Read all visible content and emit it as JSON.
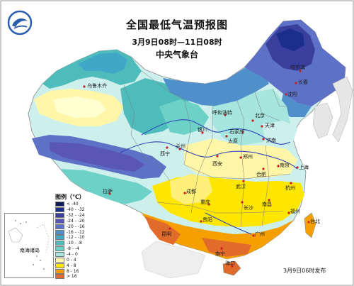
{
  "title": "全国最低气温预报图",
  "period": "3月9日08时—11日08时",
  "agency": "中央气象台",
  "issue_time": "3月9日06时发布",
  "inset_label": "南海诸岛",
  "legend": {
    "title": "图例（℃）",
    "items": [
      {
        "label": "< -40",
        "color": "#0c1a58"
      },
      {
        "label": "-40 - -32",
        "color": "#1b2f8a"
      },
      {
        "label": "-32 - -24",
        "color": "#3a3f9e"
      },
      {
        "label": "-24 - -20",
        "color": "#5a56b6"
      },
      {
        "label": "-20 - -16",
        "color": "#5d72c6"
      },
      {
        "label": "-16 - -12",
        "color": "#4f8fcb"
      },
      {
        "label": "-12 - -10",
        "color": "#3fa8c7"
      },
      {
        "label": "-10 - -8",
        "color": "#4fbcbc"
      },
      {
        "label": "-8 - -4",
        "color": "#6dd1c8"
      },
      {
        "label": "-4 - 0",
        "color": "#a6e6de"
      },
      {
        "label": "0 - 4",
        "color": "#fff6a8"
      },
      {
        "label": "4 - 8",
        "color": "#ffe600"
      },
      {
        "label": "8 - 16",
        "color": "#f5a000"
      },
      {
        "label": "> 16",
        "color": "#e06b2a"
      }
    ]
  },
  "cities": [
    {
      "name": "哈尔滨"
    },
    {
      "name": "长春"
    },
    {
      "name": "沈阳"
    },
    {
      "name": "乌鲁木齐"
    },
    {
      "name": "呼和浩特"
    },
    {
      "name": "北京"
    },
    {
      "name": "天津"
    },
    {
      "name": "石家庄"
    },
    {
      "name": "太原"
    },
    {
      "name": "银川"
    },
    {
      "name": "济南"
    },
    {
      "name": "兰州"
    },
    {
      "name": "西宁"
    },
    {
      "name": "西安"
    },
    {
      "name": "郑州"
    },
    {
      "name": "合肥"
    },
    {
      "name": "南京"
    },
    {
      "name": "上海"
    },
    {
      "name": "成都"
    },
    {
      "name": "武汉"
    },
    {
      "name": "杭州"
    },
    {
      "name": "拉萨"
    },
    {
      "name": "重庆"
    },
    {
      "name": "长沙"
    },
    {
      "name": "南昌"
    },
    {
      "name": "福州"
    },
    {
      "name": "贵阳"
    },
    {
      "name": "昆明"
    },
    {
      "name": "广州"
    },
    {
      "name": "台北"
    },
    {
      "name": "南宁"
    },
    {
      "name": "海口"
    }
  ]
}
